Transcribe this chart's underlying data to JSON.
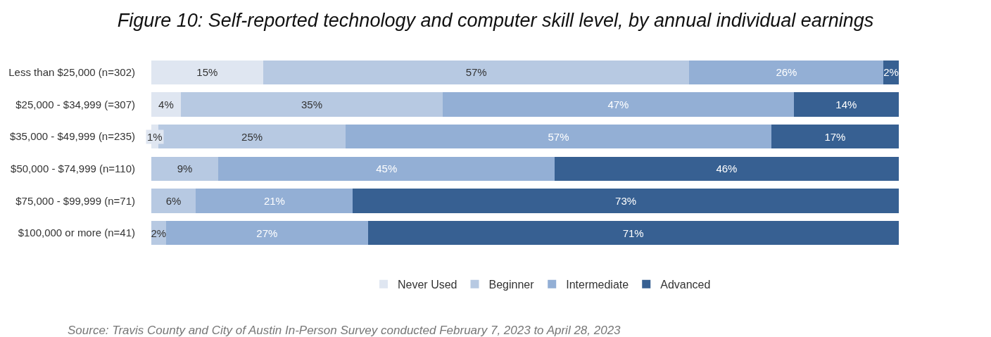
{
  "chart_data": {
    "type": "bar",
    "orientation": "horizontal",
    "stacked": true,
    "title": "Figure 10: Self-reported technology and computer skill level, by annual individual earnings",
    "categories": [
      "Less than $25,000 (n=302)",
      "$25,000 - $34,999 (=307)",
      "$35,000 - $49,999 (n=235)",
      "$50,000 - $74,999 (n=110)",
      "$75,000 - $99,999 (n=71)",
      "$100,000 or more (n=41)"
    ],
    "series": [
      {
        "name": "Never Used",
        "color": "#dfe6f1",
        "values": [
          15,
          4,
          1,
          0,
          0,
          0
        ],
        "value_labels": [
          "15%",
          "4%",
          "1%",
          null,
          null,
          null
        ]
      },
      {
        "name": "Beginner",
        "color": "#b7c9e2",
        "values": [
          57,
          35,
          25,
          9,
          6,
          2
        ],
        "value_labels": [
          "57%",
          "35%",
          "25%",
          "9%",
          "6%",
          "2%"
        ]
      },
      {
        "name": "Intermediate",
        "color": "#93afd5",
        "values": [
          26,
          47,
          57,
          45,
          21,
          27
        ],
        "value_labels": [
          "26%",
          "47%",
          "57%",
          "45%",
          "21%",
          "27%"
        ]
      },
      {
        "name": "Advanced",
        "color": "#376092",
        "values": [
          2,
          14,
          17,
          46,
          73,
          71
        ],
        "value_labels": [
          "2%",
          "14%",
          "17%",
          "46%",
          "73%",
          "71%"
        ]
      }
    ],
    "legend": "bottom",
    "annotations": [
      "Source: Travis County and City of Austin In-Person Survey conducted February 7, 2023 to April 28, 2023"
    ]
  }
}
